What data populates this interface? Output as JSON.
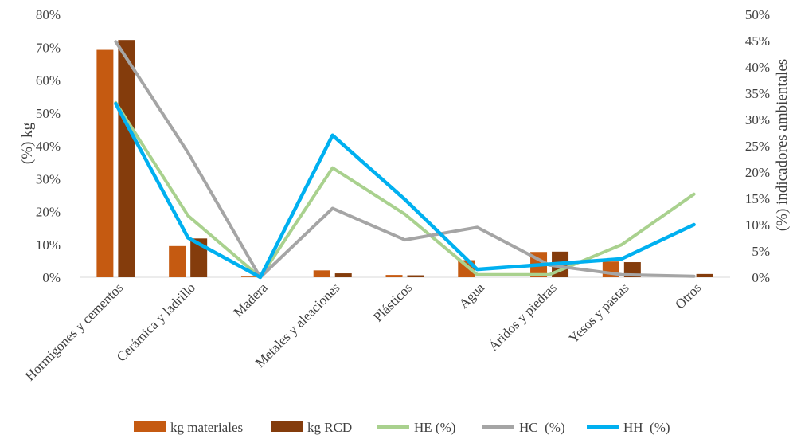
{
  "chart_data": {
    "type": "bar",
    "categories": [
      "Hormigones y cementos",
      "Cerámica y ladrillo",
      "Madera",
      "Metales y aleaciones",
      "Plásticos",
      "Agua",
      "Áridos y piedras",
      "Yesos y pastas",
      "Otros"
    ],
    "bar_series": [
      {
        "name": "kg materiales",
        "color": "#C55A11",
        "values": [
          69.2,
          9.5,
          0.2,
          2.1,
          0.7,
          5.2,
          7.7,
          4.8,
          0.2
        ]
      },
      {
        "name": "kg RCD",
        "color": "#843C0C",
        "values": [
          72.2,
          11.8,
          0.0,
          1.2,
          0.6,
          0.0,
          7.8,
          4.6,
          1.0
        ]
      }
    ],
    "line_series": [
      {
        "name": "HE (%)",
        "color": "#A9D18E",
        "values": [
          33.2,
          11.7,
          0.0,
          20.8,
          12.0,
          0.5,
          0.5,
          6.2,
          15.8
        ]
      },
      {
        "name": "HC  (%)",
        "color": "#A5A5A5",
        "values": [
          44.8,
          23.7,
          0.0,
          13.1,
          7.1,
          9.5,
          2.3,
          0.5,
          0.2
        ]
      },
      {
        "name": "HH  (%)",
        "color": "#00B0F0",
        "values": [
          33.0,
          7.5,
          0.0,
          27.0,
          14.8,
          1.5,
          2.5,
          3.5,
          10.0
        ]
      }
    ],
    "ylabel": "(%) kg",
    "y2label": "(%) indicadores ambientales",
    "ylim": [
      0,
      80
    ],
    "y2lim": [
      0,
      50
    ],
    "yticks": [
      "0%",
      "10%",
      "20%",
      "30%",
      "40%",
      "50%",
      "60%",
      "70%",
      "80%"
    ],
    "y2ticks": [
      "0%",
      "5%",
      "10%",
      "15%",
      "20%",
      "25%",
      "30%",
      "35%",
      "40%",
      "45%",
      "50%"
    ],
    "grid": false,
    "legend_position": "bottom"
  }
}
